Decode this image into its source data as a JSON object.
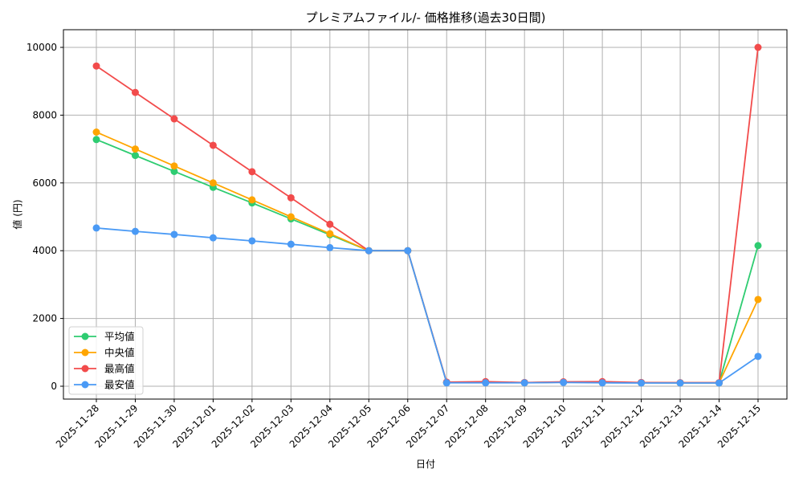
{
  "chart_data": {
    "type": "line",
    "title": "プレミアムファイル/- 価格推移(過去30日間)",
    "xlabel": "日付",
    "ylabel": "値 (円)",
    "ylim": [
      -400,
      10500
    ],
    "yticks": [
      0,
      2000,
      4000,
      6000,
      8000,
      10000
    ],
    "grid": true,
    "legend_position": "lower left",
    "categories": [
      "2025-11-28",
      "2025-11-29",
      "2025-11-30",
      "2025-12-01",
      "2025-12-02",
      "2025-12-03",
      "2025-12-04",
      "2025-12-05",
      "2025-12-06",
      "2025-12-07",
      "2025-12-08",
      "2025-12-09",
      "2025-12-10",
      "2025-12-11",
      "2025-12-12",
      "2025-12-13",
      "2025-12-14",
      "2025-12-15"
    ],
    "series": [
      {
        "name": "平均値",
        "color": "#2ecc71",
        "values": [
          7280,
          6810,
          6340,
          5870,
          5410,
          4940,
          4470,
          4000,
          4000,
          110,
          115,
          105,
          120,
          115,
          105,
          100,
          100,
          4150
        ]
      },
      {
        "name": "中央値",
        "color": "#ffa500",
        "values": [
          7500,
          7000,
          6500,
          6000,
          5500,
          5000,
          4500,
          4000,
          4000,
          110,
          115,
          105,
          120,
          115,
          105,
          100,
          100,
          2560
        ]
      },
      {
        "name": "最高値",
        "color": "#f24b4b",
        "values": [
          9450,
          8670,
          7890,
          7110,
          6330,
          5560,
          4780,
          4000,
          4000,
          120,
          135,
          110,
          130,
          135,
          110,
          105,
          105,
          10000
        ]
      },
      {
        "name": "最安値",
        "color": "#4a9af5",
        "values": [
          4670,
          4570,
          4480,
          4380,
          4290,
          4190,
          4090,
          4000,
          4000,
          100,
          100,
          100,
          110,
          100,
          95,
          95,
          95,
          880
        ]
      }
    ]
  }
}
